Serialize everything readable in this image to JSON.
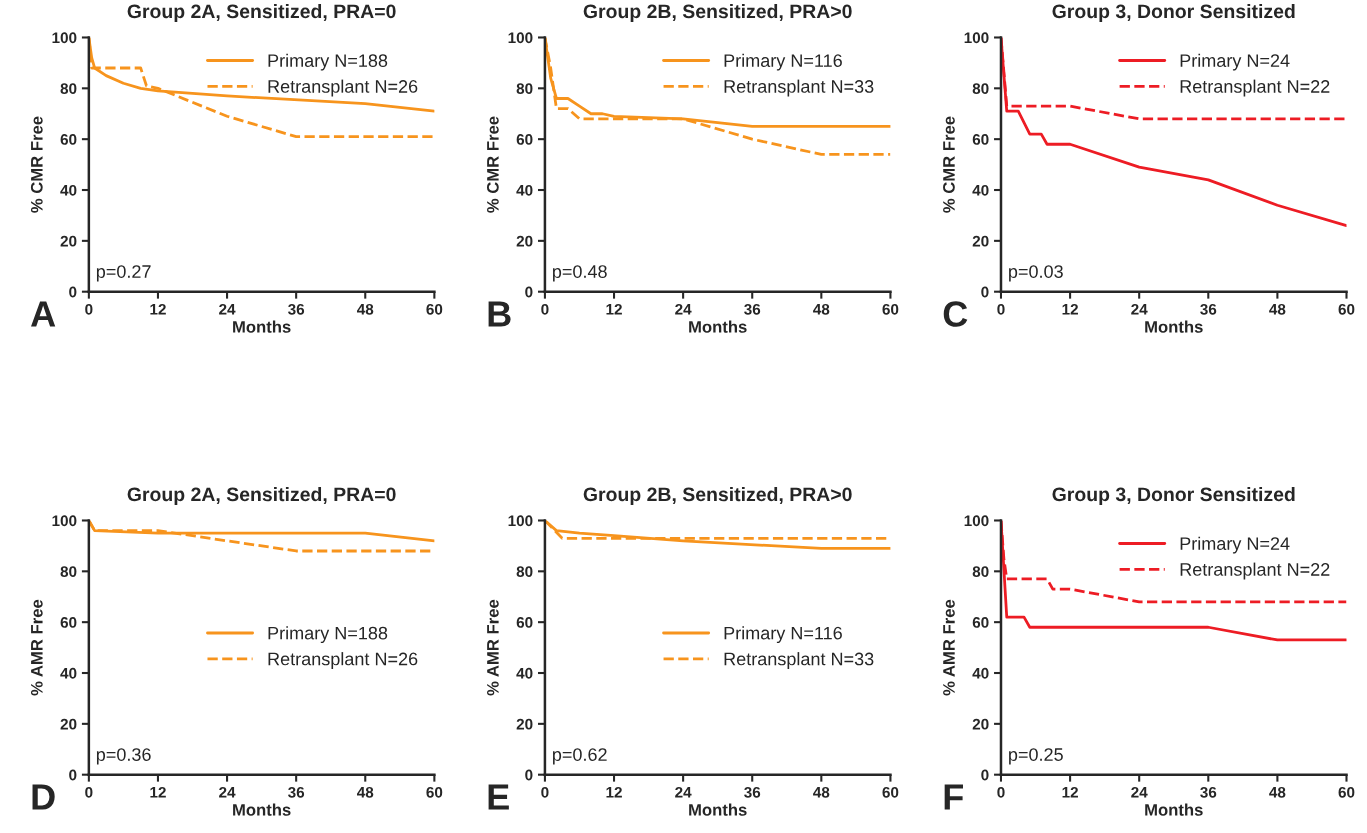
{
  "chart_data": [
    {
      "type": "line",
      "title": "Group 2A, Sensitized, PRA=0",
      "xlabel": "Months",
      "ylabel": "% CMR Free",
      "xlim": [
        0,
        60
      ],
      "xticks": [
        0,
        12,
        24,
        36,
        48,
        60
      ],
      "ylim": [
        0,
        100
      ],
      "yticks": [
        0,
        20,
        40,
        60,
        80,
        100
      ],
      "legend": "top right",
      "grid": false,
      "annotations": [
        "p=0.27",
        "A"
      ],
      "series": [
        {
          "name": "Primary N=188",
          "color": "#f7941d",
          "line_style": "solid",
          "x": [
            0,
            0.5,
            1,
            3,
            6,
            9,
            12,
            24,
            48,
            60
          ],
          "values": [
            100,
            92,
            88,
            85,
            82,
            80,
            79,
            77,
            74,
            71
          ]
        },
        {
          "name": "Retransplant N=26",
          "color": "#f7941d",
          "line_style": "dashed",
          "x": [
            0,
            0.5,
            9,
            10,
            12,
            24,
            36,
            60
          ],
          "values": [
            100,
            88,
            88,
            81,
            80,
            69,
            61,
            61
          ]
        }
      ]
    },
    {
      "type": "line",
      "title": "Group 2B, Sensitized, PRA>0",
      "xlabel": "Months",
      "ylabel": "% CMR Free",
      "xlim": [
        0,
        60
      ],
      "xticks": [
        0,
        12,
        24,
        36,
        48,
        60
      ],
      "ylim": [
        0,
        100
      ],
      "yticks": [
        0,
        20,
        40,
        60,
        80,
        100
      ],
      "legend": "top right",
      "grid": false,
      "annotations": [
        "p=0.48",
        "B"
      ],
      "series": [
        {
          "name": "Primary N=116",
          "color": "#f7941d",
          "line_style": "solid",
          "x": [
            0,
            1,
            2,
            4,
            6,
            8,
            10,
            12,
            24,
            36,
            60
          ],
          "values": [
            100,
            84,
            76,
            76,
            73,
            70,
            70,
            69,
            68,
            65,
            65
          ]
        },
        {
          "name": "Retransplant N=33",
          "color": "#f7941d",
          "line_style": "dashed",
          "x": [
            0,
            1,
            2,
            4,
            6,
            24,
            36,
            48,
            60
          ],
          "values": [
            100,
            88,
            72,
            72,
            68,
            68,
            60,
            54,
            54
          ]
        }
      ]
    },
    {
      "type": "line",
      "title": "Group 3, Donor Sensitized",
      "xlabel": "Months",
      "ylabel": "% CMR Free",
      "xlim": [
        0,
        60
      ],
      "xticks": [
        0,
        12,
        24,
        36,
        48,
        60
      ],
      "ylim": [
        0,
        100
      ],
      "yticks": [
        0,
        20,
        40,
        60,
        80,
        100
      ],
      "legend": "top right",
      "grid": false,
      "annotations": [
        "p=0.03",
        "C"
      ],
      "series": [
        {
          "name": "Primary N=24",
          "color": "#ed1c24",
          "line_style": "solid",
          "x": [
            0,
            1,
            3,
            5,
            7,
            8,
            12,
            24,
            36,
            48,
            60
          ],
          "values": [
            100,
            71,
            71,
            62,
            62,
            58,
            58,
            49,
            44,
            34,
            26
          ]
        },
        {
          "name": "Retransplant N=22",
          "color": "#ed1c24",
          "line_style": "dashed",
          "x": [
            0,
            1,
            12,
            24,
            60
          ],
          "values": [
            100,
            73,
            73,
            68,
            68
          ]
        }
      ]
    },
    {
      "type": "line",
      "title": "Group 2A, Sensitized, PRA=0",
      "xlabel": "Months",
      "ylabel": "% AMR Free",
      "xlim": [
        0,
        60
      ],
      "xticks": [
        0,
        12,
        24,
        36,
        48,
        60
      ],
      "ylim": [
        0,
        100
      ],
      "yticks": [
        0,
        20,
        40,
        60,
        80,
        100
      ],
      "legend": "right",
      "grid": false,
      "annotations": [
        "p=0.36",
        "D"
      ],
      "series": [
        {
          "name": "Primary N=188",
          "color": "#f7941d",
          "line_style": "solid",
          "x": [
            0,
            1,
            12,
            24,
            48,
            60
          ],
          "values": [
            100,
            96,
            95,
            95,
            95,
            92
          ]
        },
        {
          "name": "Retransplant N=26",
          "color": "#f7941d",
          "line_style": "dashed",
          "x": [
            0,
            1,
            12,
            24,
            36,
            60
          ],
          "values": [
            100,
            96,
            96,
            92,
            88,
            88
          ]
        }
      ]
    },
    {
      "type": "line",
      "title": "Group 2B, Sensitized, PRA>0",
      "xlabel": "Months",
      "ylabel": "% AMR Free",
      "xlim": [
        0,
        60
      ],
      "xticks": [
        0,
        12,
        24,
        36,
        48,
        60
      ],
      "ylim": [
        0,
        100
      ],
      "yticks": [
        0,
        20,
        40,
        60,
        80,
        100
      ],
      "legend": "right",
      "grid": false,
      "annotations": [
        "p=0.62",
        "E"
      ],
      "series": [
        {
          "name": "Primary N=116",
          "color": "#f7941d",
          "line_style": "solid",
          "x": [
            0,
            1,
            2,
            6,
            12,
            24,
            48,
            60
          ],
          "values": [
            100,
            98,
            96,
            95,
            94,
            92,
            89,
            89
          ]
        },
        {
          "name": "Retransplant N=33",
          "color": "#f7941d",
          "line_style": "dashed",
          "x": [
            0,
            3,
            60
          ],
          "values": [
            100,
            93,
            93
          ]
        }
      ]
    },
    {
      "type": "line",
      "title": "Group 3, Donor Sensitized",
      "xlabel": "Months",
      "ylabel": "% AMR Free",
      "xlim": [
        0,
        60
      ],
      "xticks": [
        0,
        12,
        24,
        36,
        48,
        60
      ],
      "ylim": [
        0,
        100
      ],
      "yticks": [
        0,
        20,
        40,
        60,
        80,
        100
      ],
      "legend": "top right",
      "grid": false,
      "annotations": [
        "p=0.25",
        "F"
      ],
      "series": [
        {
          "name": "Primary N=24",
          "color": "#ed1c24",
          "line_style": "solid",
          "x": [
            0,
            1,
            4,
            5,
            36,
            48,
            60
          ],
          "values": [
            100,
            62,
            62,
            58,
            58,
            53,
            53
          ]
        },
        {
          "name": "Retransplant N=22",
          "color": "#ed1c24",
          "line_style": "dashed",
          "x": [
            0,
            0.5,
            1,
            8,
            9,
            12,
            24,
            60
          ],
          "values": [
            100,
            85,
            77,
            77,
            73,
            73,
            68,
            68
          ]
        }
      ]
    }
  ]
}
